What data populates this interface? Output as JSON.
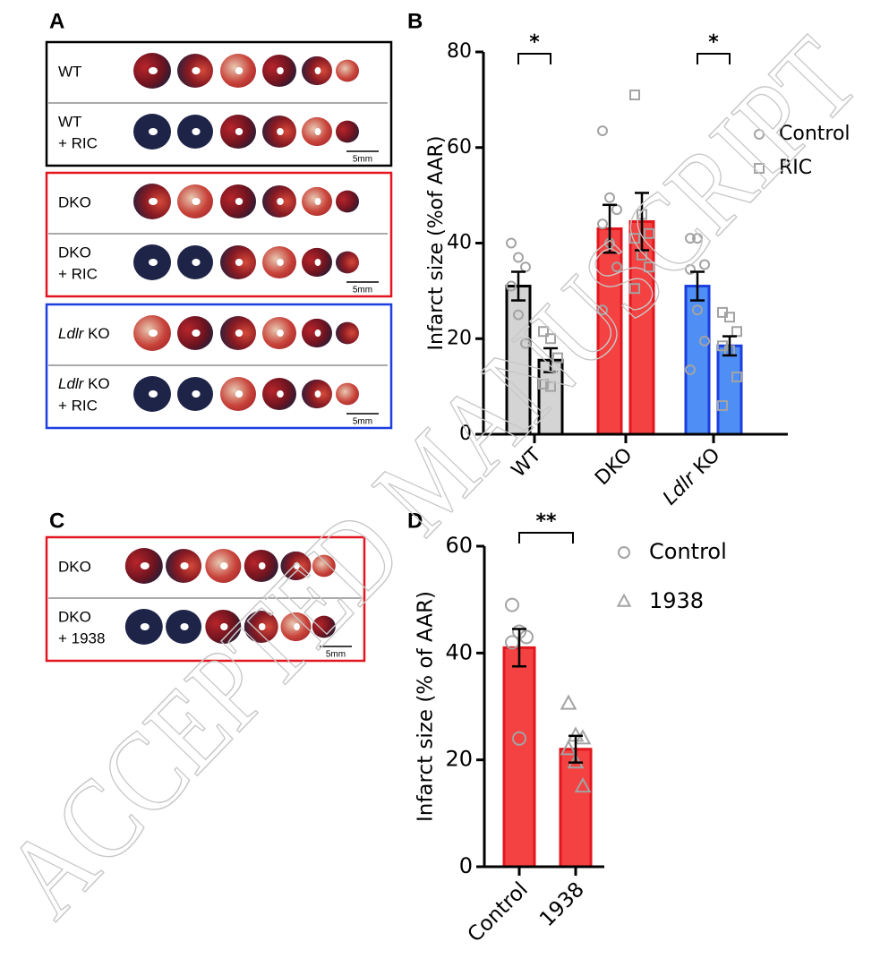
{
  "panel_labels": [
    "A",
    "B",
    "C",
    "D"
  ],
  "watermark": "ACCEPTED MANUSCRIPT",
  "photo_panels": [
    {
      "border": "#000000",
      "scale": "5mm",
      "rows": [
        {
          "lines": [
            "WT"
          ]
        },
        {
          "lines": [
            "WT",
            "+ RIC"
          ]
        }
      ]
    },
    {
      "border": "#e3161f",
      "scale": "5mm",
      "rows": [
        {
          "lines": [
            "DKO"
          ]
        },
        {
          "lines": [
            "DKO",
            "+ RIC"
          ]
        }
      ]
    },
    {
      "border": "#1b3fe0",
      "scale": "5mm",
      "rows": [
        {
          "lines": [
            "Ldlr KO"
          ],
          "italic_first_word": true
        },
        {
          "lines": [
            "Ldlr KO",
            "+ RIC"
          ],
          "italic_first_word": true
        }
      ]
    },
    {
      "border": "#e3161f",
      "scale": "5mm",
      "rows": [
        {
          "lines": [
            "DKO"
          ]
        },
        {
          "lines": [
            "DKO",
            "+ 1938"
          ]
        }
      ]
    }
  ],
  "chart_data": [
    {
      "type": "bar",
      "y_label": "Infarct size (%of AAR)",
      "categories": [
        "WT",
        "DKO",
        "Ldlr KO"
      ],
      "italic_first_word": [
        false,
        false,
        true
      ],
      "bar_colors": [
        "#d4d4d4",
        "#f44141",
        "#4f8ff5"
      ],
      "edge_colors": [
        "#000000",
        "#e3161f",
        "#1b3fe0"
      ],
      "point_color": "#a3a3a3",
      "ylim": [
        0,
        80
      ],
      "yticks": [
        0,
        20,
        40,
        60,
        80
      ],
      "annotations": [
        "*",
        "*"
      ],
      "series": [
        {
          "name": "Control",
          "marker": "circle",
          "values": [
            31,
            43,
            31
          ],
          "errors": [
            3,
            5,
            3
          ],
          "points": [
            [
              40,
              37,
              35,
              31,
              25,
              19
            ],
            [
              63.5,
              49.5,
              47,
              44,
              40,
              35,
              26
            ],
            [
              41,
              41,
              35.5,
              34.5,
              26,
              19.5,
              13.5
            ]
          ]
        },
        {
          "name": "RIC",
          "marker": "square",
          "values": [
            15.5,
            44.5,
            18.5
          ],
          "errors": [
            2.5,
            6,
            2
          ],
          "points": [
            [
              21.5,
              20,
              16,
              10.5,
              10
            ],
            [
              71,
              46,
              42,
              41,
              37.5,
              35,
              30.5
            ],
            [
              25.5,
              24.5,
              21.5,
              18.5,
              17.5,
              12,
              6
            ]
          ]
        }
      ]
    },
    {
      "type": "bar",
      "y_label": "Infarct size (% of AAR)",
      "categories": [
        "Control",
        "1938"
      ],
      "markers": [
        "circle",
        "triangle"
      ],
      "values": [
        41,
        22
      ],
      "errors": [
        3.5,
        2.5
      ],
      "points": [
        [
          49,
          44,
          43,
          42,
          24
        ],
        [
          30.5,
          24.5,
          24,
          22,
          19.5,
          15
        ]
      ],
      "bar_color": "#f44141",
      "edge_color": "#e3161f",
      "point_color": "#a3a3a3",
      "ylim": [
        0,
        60
      ],
      "yticks": [
        0,
        20,
        40,
        60
      ],
      "annotations": [
        "**"
      ]
    }
  ]
}
